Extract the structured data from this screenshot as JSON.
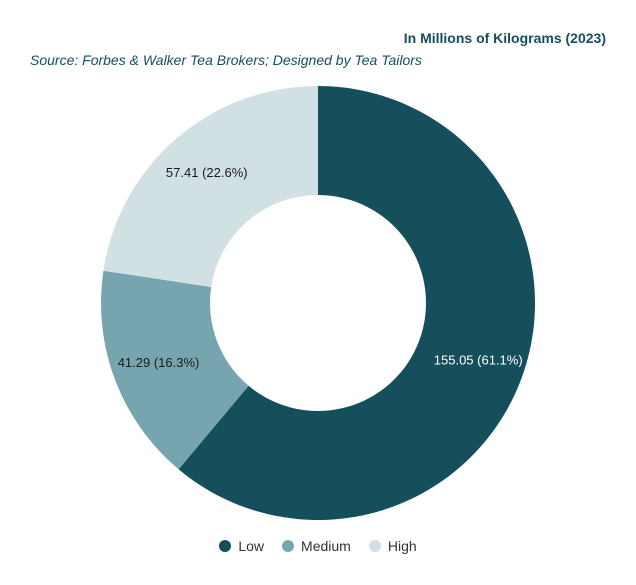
{
  "chart_data": {
    "type": "pie",
    "donut": true,
    "title": "In Millions of Kilograms (2023)",
    "subtitle": "Source: Forbes & Walker Tea Brokers; Designed by Tea Tailors",
    "legend_position": "bottom",
    "categories": [
      "Low",
      "Medium",
      "High"
    ],
    "values": [
      155.05,
      41.29,
      57.41
    ],
    "labels": [
      "155.05 (61.1%)",
      "41.29 (16.3%)",
      "57.41 (22.6%)"
    ],
    "colors": [
      "#164f5c",
      "#76a5af",
      "#d0e0e3"
    ],
    "label_colors": [
      "#ffffff",
      "#1b1b1b",
      "#1b1b1b"
    ]
  }
}
